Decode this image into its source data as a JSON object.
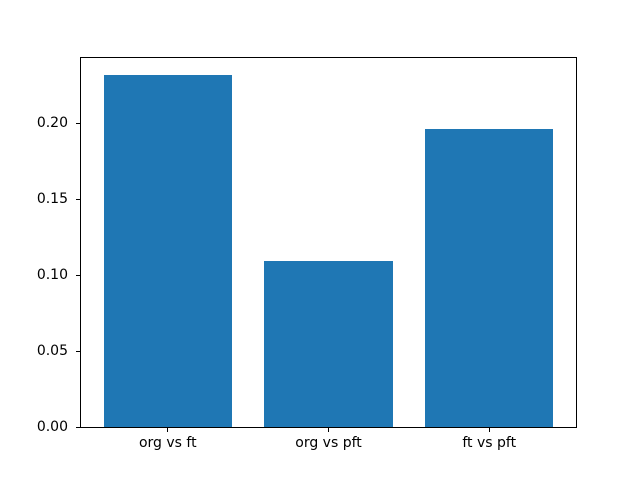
{
  "chart_data": {
    "type": "bar",
    "title": "",
    "xlabel": "",
    "ylabel": "",
    "categories": [
      "org vs ft",
      "org vs pft",
      "ft vs pft"
    ],
    "values": [
      0.232,
      0.109,
      0.196
    ],
    "yticks": [
      0.0,
      0.05,
      0.1,
      0.15,
      0.2
    ],
    "ytick_labels": [
      "0.00",
      "0.05",
      "0.10",
      "0.15",
      "0.20"
    ],
    "ylim": [
      0,
      0.243
    ],
    "bar_color": "#1f77b4",
    "bar_width_fraction": 0.8,
    "x_margin_fraction": 0.05,
    "grid": false,
    "legend_position": "none",
    "background_color": "#ffffff",
    "spine_color": "#000000",
    "text_color": "#000000"
  }
}
